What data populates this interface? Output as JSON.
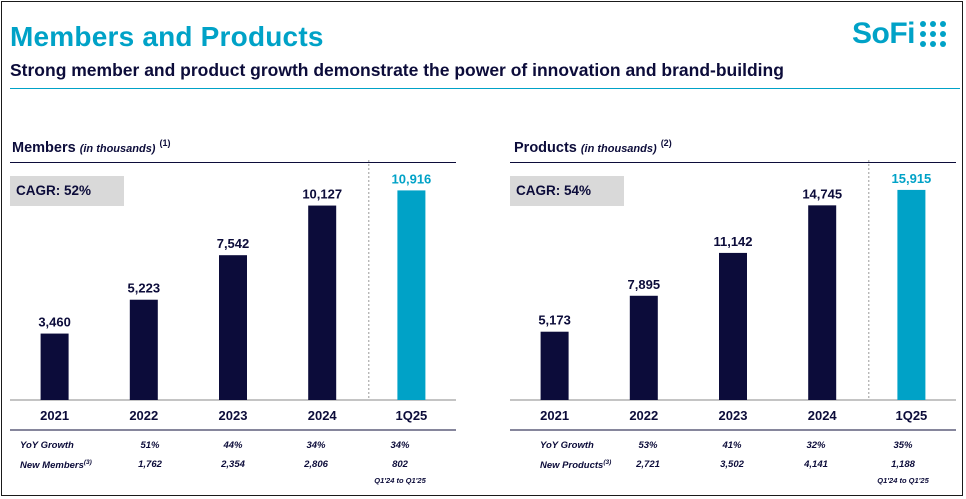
{
  "header": {
    "title": "Members and Products",
    "subtitle": "Strong member and product growth demonstrate the power of innovation and brand-building",
    "logo_text": "SoFi"
  },
  "colors": {
    "accent": "#00a2c7",
    "navy": "#0c0c3a",
    "cagr_bg": "#d9d9d9"
  },
  "members": {
    "title": "Members",
    "unit": "(in thousands)",
    "footnote": "(1)",
    "cagr": "CAGR: 52%",
    "yoy_label": "YoY Growth",
    "new_label": "New Members",
    "new_footnote": "(3)",
    "yoy": [
      "51%",
      "44%",
      "34%",
      "34%"
    ],
    "new": [
      "1,762",
      "2,354",
      "2,806",
      "802"
    ],
    "note": "Q1'24 to Q1'25"
  },
  "products": {
    "title": "Products",
    "unit": "(in thousands)",
    "footnote": "(2)",
    "cagr": "CAGR: 54%",
    "yoy_label": "YoY Growth",
    "new_label": "New Products",
    "new_footnote": "(3)",
    "yoy": [
      "53%",
      "41%",
      "32%",
      "35%"
    ],
    "new": [
      "2,721",
      "3,502",
      "4,141",
      "1,188"
    ],
    "note": "Q1'24 to Q1'25"
  },
  "chart_data": [
    {
      "type": "bar",
      "categories": [
        "2021",
        "2022",
        "2023",
        "2024",
        "1Q25"
      ],
      "values": [
        3460,
        5223,
        7542,
        10127,
        10916
      ],
      "labels": [
        "3,460",
        "5,223",
        "7,542",
        "10,127",
        "10,916"
      ],
      "title": "Members (in thousands)",
      "ylim": [
        0,
        12500
      ],
      "highlight_last": true
    },
    {
      "type": "bar",
      "categories": [
        "2021",
        "2022",
        "2023",
        "2024",
        "1Q25"
      ],
      "values": [
        5173,
        7895,
        11142,
        14745,
        15915
      ],
      "labels": [
        "5,173",
        "7,895",
        "11,142",
        "14,745",
        "15,915"
      ],
      "title": "Products (in thousands)",
      "ylim": [
        0,
        18180
      ],
      "highlight_last": true
    }
  ]
}
